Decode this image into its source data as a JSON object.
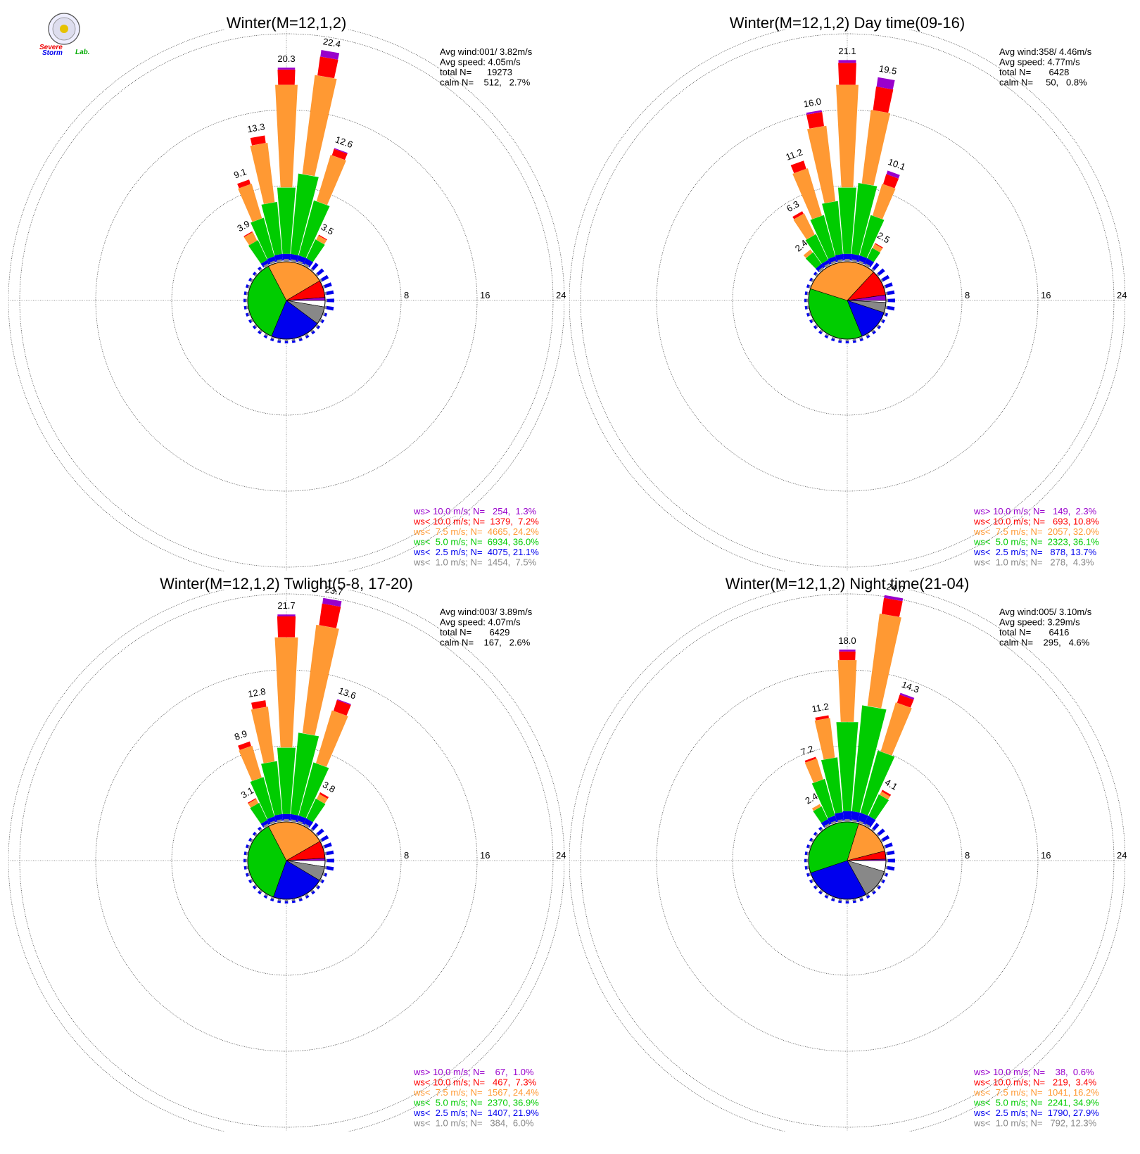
{
  "logo": {
    "word1": "Severe",
    "word2": "Storm",
    "word3": "Lab."
  },
  "colors": {
    "calm": "#ffffff",
    "lt1": "#888888",
    "lt2_5": "#0000ee",
    "lt5": "#00cc00",
    "lt7_5": "#ff9933",
    "lt10": "#ff0000",
    "gt10": "#9900cc",
    "grid": "#777777"
  },
  "chart_data": [
    {
      "type": "windrose",
      "title": "Winter(M=12,1,2)",
      "stats": [
        "Avg wind:001/ 3.82m/s",
        "Avg speed: 4.05m/s",
        "total N=      19273",
        "calm N=    512,   2.7%"
      ],
      "rings": [
        "8",
        "16",
        "24"
      ],
      "rmax": 24,
      "legend": [
        {
          "cls": "gt10",
          "text": "ws> 10.0 m/s; N=   254,  1.3%"
        },
        {
          "cls": "lt10",
          "text": "ws< 10.0 m/s; N=  1379,  7.2%"
        },
        {
          "cls": "lt7_5",
          "text": "ws<  7.5 m/s; N=  4665, 24.2%"
        },
        {
          "cls": "lt5",
          "text": "ws<  5.0 m/s; N=  6934, 36.0%"
        },
        {
          "cls": "lt2_5",
          "text": "ws<  2.5 m/s; N=  4075, 21.1%"
        },
        {
          "cls": "lt1",
          "text": "ws<  1.0 m/s; N=  1454,  7.5%"
        }
      ],
      "pie": [
        2.7,
        7.5,
        21.1,
        36.0,
        24.2,
        7.2,
        1.3
      ],
      "bars": [
        {
          "dir": 330,
          "total": 3.9,
          "seg": [
            0.5,
            2.3,
            1.0,
            0.1,
            0.0
          ],
          "label": "3.9"
        },
        {
          "dir": 340,
          "total": 9.1,
          "seg": [
            0.6,
            4.2,
            3.8,
            0.5,
            0.0
          ],
          "label": "9.1"
        },
        {
          "dir": 350,
          "total": 13.3,
          "seg": [
            0.7,
            5.5,
            6.3,
            0.8,
            0.0
          ],
          "label": "13.3"
        },
        {
          "dir": 0,
          "total": 20.3,
          "seg": [
            0.7,
            7.0,
            10.8,
            1.6,
            0.2
          ],
          "label": "20.3"
        },
        {
          "dir": 10,
          "total": 22.4,
          "seg": [
            0.7,
            8.5,
            10.5,
            2.0,
            0.7
          ],
          "label": "22.4"
        },
        {
          "dir": 20,
          "total": 12.6,
          "seg": [
            0.7,
            6.0,
            5.1,
            0.7,
            0.1
          ],
          "label": "12.6"
        },
        {
          "dir": 30,
          "total": 3.5,
          "seg": [
            0.7,
            2.2,
            0.5,
            0.1,
            0.0
          ],
          "label": "3.5"
        }
      ]
    },
    {
      "type": "windrose",
      "title": "Winter(M=12,1,2) Day time(09-16)",
      "stats": [
        "Avg wind:358/ 4.46m/s",
        "Avg speed: 4.77m/s",
        "total N=       6428",
        "calm N=     50,   0.8%"
      ],
      "rings": [
        "8",
        "16",
        "24"
      ],
      "rmax": 24,
      "legend": [
        {
          "cls": "gt10",
          "text": "ws> 10.0 m/s; N=   149,  2.3%"
        },
        {
          "cls": "lt10",
          "text": "ws< 10.0 m/s; N=   693, 10.8%"
        },
        {
          "cls": "lt7_5",
          "text": "ws<  7.5 m/s; N=  2057, 32.0%"
        },
        {
          "cls": "lt5",
          "text": "ws<  5.0 m/s; N=  2323, 36.1%"
        },
        {
          "cls": "lt2_5",
          "text": "ws<  2.5 m/s; N=   878, 13.7%"
        },
        {
          "cls": "lt1",
          "text": "ws<  1.0 m/s; N=   278,  4.3%"
        }
      ],
      "pie": [
        0.8,
        4.3,
        13.7,
        36.1,
        32.0,
        10.8,
        2.3
      ],
      "bars": [
        {
          "dir": 320,
          "total": 2.4,
          "seg": [
            0.5,
            1.5,
            0.4,
            0.0,
            0.0
          ],
          "label": "2.4"
        },
        {
          "dir": 330,
          "total": 6.3,
          "seg": [
            0.5,
            3.0,
            2.5,
            0.3,
            0.0
          ],
          "label": "6.3"
        },
        {
          "dir": 340,
          "total": 11.2,
          "seg": [
            0.6,
            4.5,
            5.2,
            0.9,
            0.0
          ],
          "label": "11.2"
        },
        {
          "dir": 350,
          "total": 16.0,
          "seg": [
            0.7,
            5.6,
            8.0,
            1.5,
            0.2
          ],
          "label": "16.0"
        },
        {
          "dir": 0,
          "total": 21.1,
          "seg": [
            0.7,
            7.0,
            10.8,
            2.3,
            0.3
          ],
          "label": "21.1"
        },
        {
          "dir": 10,
          "total": 19.5,
          "seg": [
            0.7,
            7.5,
            7.8,
            2.5,
            1.0
          ],
          "label": "19.5"
        },
        {
          "dir": 20,
          "total": 10.1,
          "seg": [
            0.7,
            4.4,
            3.5,
            1.1,
            0.4
          ],
          "label": "10.1"
        },
        {
          "dir": 30,
          "total": 2.5,
          "seg": [
            0.7,
            1.2,
            0.5,
            0.1,
            0.0
          ],
          "label": "2.5"
        }
      ]
    },
    {
      "type": "windrose",
      "title": "Winter(M=12,1,2) Twlight(5-8, 17-20)",
      "stats": [
        "Avg wind:003/ 3.89m/s",
        "Avg speed: 4.07m/s",
        "total N=       6429",
        "calm N=    167,   2.6%"
      ],
      "rings": [
        "8",
        "16",
        "24"
      ],
      "rmax": 24,
      "legend": [
        {
          "cls": "gt10",
          "text": "ws> 10.0 m/s; N=    67,  1.0%"
        },
        {
          "cls": "lt10",
          "text": "ws< 10.0 m/s; N=   467,  7.3%"
        },
        {
          "cls": "lt7_5",
          "text": "ws<  7.5 m/s; N=  1567, 24.4%"
        },
        {
          "cls": "lt5",
          "text": "ws<  5.0 m/s; N=  2370, 36.9%"
        },
        {
          "cls": "lt2_5",
          "text": "ws<  2.5 m/s; N=  1407, 21.9%"
        },
        {
          "cls": "lt1",
          "text": "ws<  1.0 m/s; N=   384,  6.0%"
        }
      ],
      "pie": [
        2.6,
        6.0,
        21.9,
        36.9,
        24.4,
        7.3,
        1.0
      ],
      "bars": [
        {
          "dir": 330,
          "total": 3.1,
          "seg": [
            0.5,
            2.0,
            0.5,
            0.1,
            0.0
          ],
          "label": "3.1"
        },
        {
          "dir": 340,
          "total": 8.9,
          "seg": [
            0.6,
            4.3,
            3.5,
            0.5,
            0.0
          ],
          "label": "8.9"
        },
        {
          "dir": 350,
          "total": 12.8,
          "seg": [
            0.7,
            5.6,
            5.8,
            0.7,
            0.0
          ],
          "label": "12.8"
        },
        {
          "dir": 0,
          "total": 21.7,
          "seg": [
            0.7,
            7.0,
            11.6,
            2.2,
            0.2
          ],
          "label": "21.7"
        },
        {
          "dir": 10,
          "total": 23.7,
          "seg": [
            0.7,
            8.6,
            11.5,
            2.3,
            0.6
          ],
          "label": "23.7"
        },
        {
          "dir": 20,
          "total": 13.6,
          "seg": [
            0.7,
            5.8,
            5.8,
            1.2,
            0.1
          ],
          "label": "13.6"
        },
        {
          "dir": 30,
          "total": 3.8,
          "seg": [
            0.7,
            2.3,
            0.6,
            0.2,
            0.0
          ],
          "label": "3.8"
        }
      ]
    },
    {
      "type": "windrose",
      "title": "Winter(M=12,1,2) Night time(21-04)",
      "stats": [
        "Avg wind:005/ 3.10m/s",
        "Avg speed: 3.29m/s",
        "total N=       6416",
        "calm N=    295,   4.6%"
      ],
      "rings": [
        "8",
        "16",
        "24"
      ],
      "rmax": 24,
      "legend": [
        {
          "cls": "gt10",
          "text": "ws> 10.0 m/s; N=    38,  0.6%"
        },
        {
          "cls": "lt10",
          "text": "ws< 10.0 m/s; N=   219,  3.4%"
        },
        {
          "cls": "lt7_5",
          "text": "ws<  7.5 m/s; N=  1041, 16.2%"
        },
        {
          "cls": "lt5",
          "text": "ws<  5.0 m/s; N=  2241, 34.9%"
        },
        {
          "cls": "lt2_5",
          "text": "ws<  2.5 m/s; N=  1790, 27.9%"
        },
        {
          "cls": "lt1",
          "text": "ws<  1.0 m/s; N=   792, 12.3%"
        }
      ],
      "pie": [
        4.6,
        12.3,
        27.9,
        34.9,
        16.2,
        3.4,
        0.6
      ],
      "bars": [
        {
          "dir": 330,
          "total": 2.4,
          "seg": [
            0.6,
            1.5,
            0.3,
            0.0,
            0.0
          ],
          "label": "2.4"
        },
        {
          "dir": 340,
          "total": 7.2,
          "seg": [
            0.7,
            4.0,
            2.3,
            0.2,
            0.0
          ],
          "label": "7.2"
        },
        {
          "dir": 350,
          "total": 11.2,
          "seg": [
            0.9,
            5.8,
            4.2,
            0.3,
            0.0
          ],
          "label": "11.2"
        },
        {
          "dir": 0,
          "total": 18.0,
          "seg": [
            1.0,
            9.4,
            6.5,
            0.9,
            0.2
          ],
          "label": "18.0"
        },
        {
          "dir": 10,
          "total": 24.0,
          "seg": [
            1.0,
            11.2,
            9.8,
            1.7,
            0.3
          ],
          "label": "24.0"
        },
        {
          "dir": 20,
          "total": 14.3,
          "seg": [
            1.0,
            6.8,
            5.4,
            0.9,
            0.2
          ],
          "label": "14.3"
        },
        {
          "dir": 30,
          "total": 4.1,
          "seg": [
            1.0,
            2.5,
            0.4,
            0.2,
            0.0
          ],
          "label": "4.1"
        }
      ]
    }
  ]
}
